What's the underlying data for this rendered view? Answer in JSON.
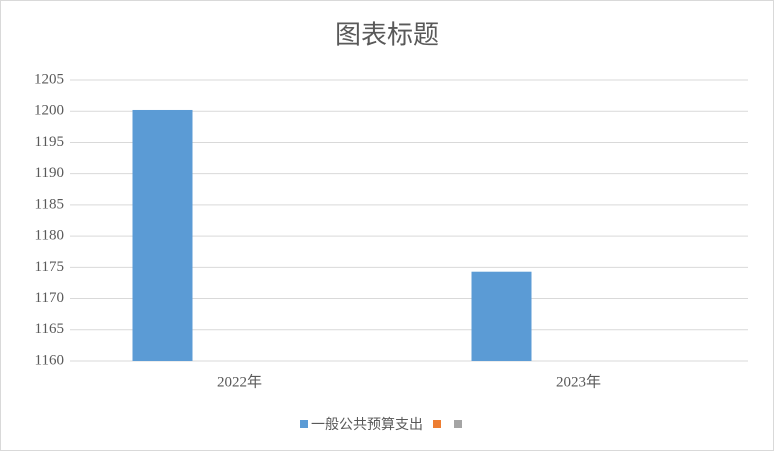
{
  "chart_data": {
    "type": "bar",
    "title": "图表标题",
    "categories": [
      "2022年",
      "2023年"
    ],
    "series": [
      {
        "name": "一般公共预算支出",
        "color": "#5b9bd5",
        "values": [
          1200.2,
          1174.3
        ]
      },
      {
        "color": "#ed7d31",
        "values": [
          null,
          null
        ]
      },
      {
        "color": "#a5a5a5",
        "values": [
          null,
          null
        ]
      }
    ],
    "ylim": [
      1160,
      1205
    ],
    "yticks": [
      1160,
      1165,
      1170,
      1175,
      1180,
      1185,
      1190,
      1195,
      1200,
      1205
    ],
    "grid": true,
    "legend": "bottom"
  }
}
